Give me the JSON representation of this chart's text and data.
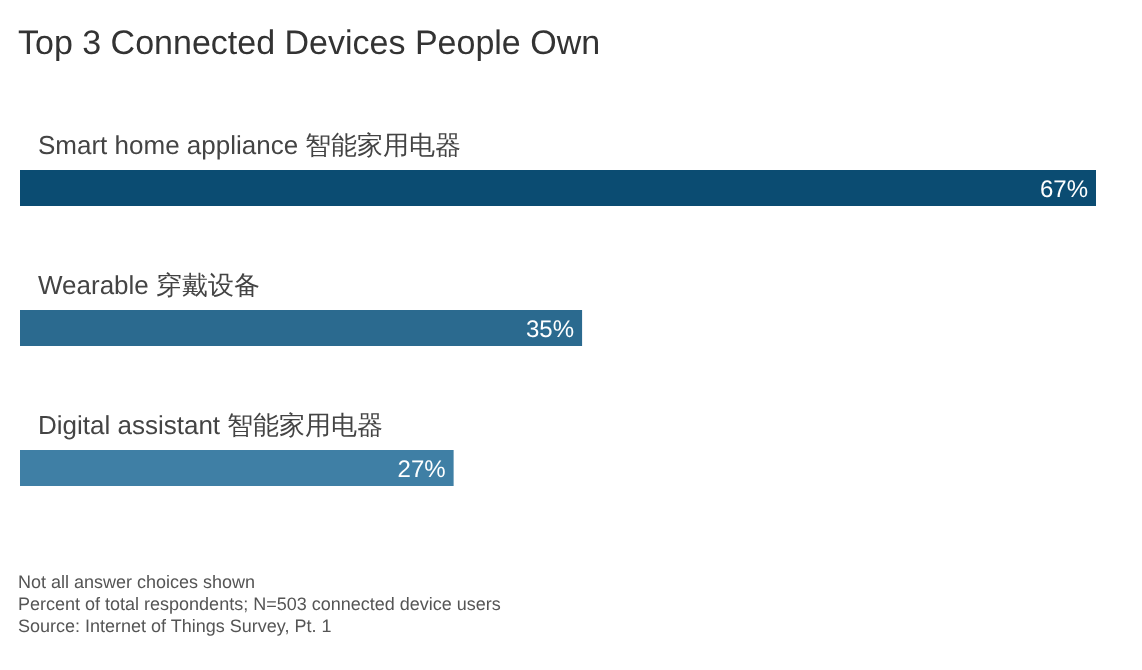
{
  "chart_data": {
    "type": "bar",
    "orientation": "horizontal",
    "title": "Top 3 Connected Devices People Own",
    "categories": [
      "Smart home appliance  智能家用电器",
      "Wearable  穿戴设备",
      "Digital assistant  智能家用电器"
    ],
    "values": [
      67,
      35,
      27
    ],
    "colors": [
      "#0b4c72",
      "#2b6a8f",
      "#3f7fa5"
    ],
    "value_labels": [
      "67%",
      "35%",
      "27%"
    ],
    "annotations": [
      "Not all answer choices shown",
      "Percent of total respondents; N=503 connected device users",
      "Source: Internet of Things Survey, Pt. 1"
    ]
  }
}
